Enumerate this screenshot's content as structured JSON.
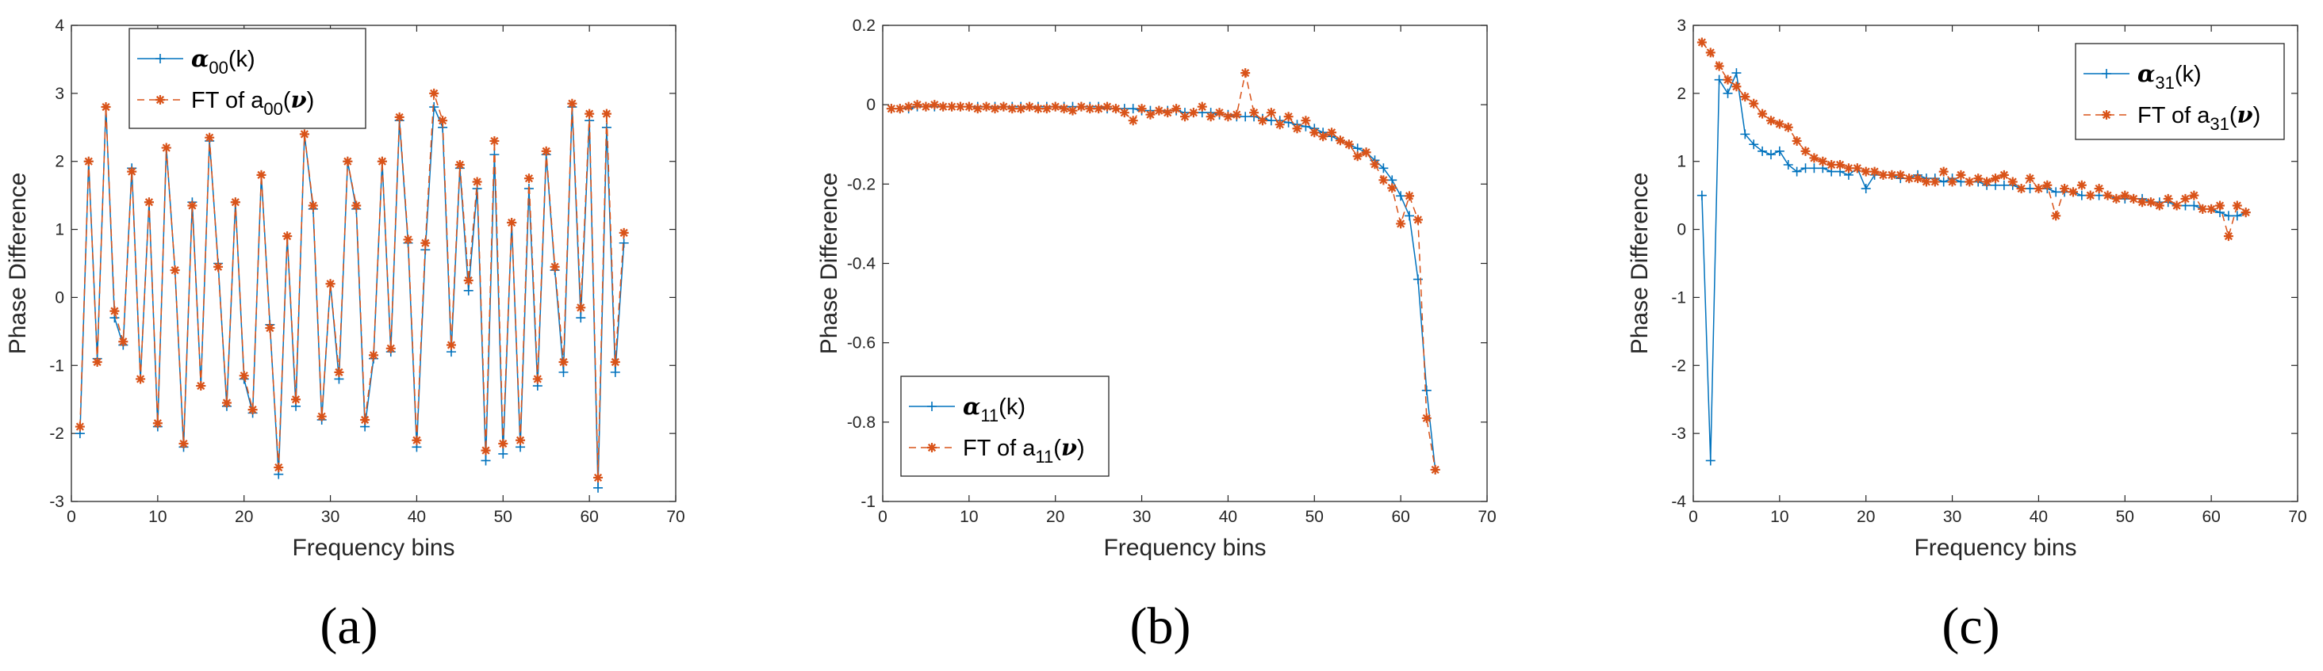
{
  "colors": {
    "series1": "#0072BD",
    "series2": "#D95319",
    "axis": "#262626"
  },
  "chart_data": [
    {
      "type": "line",
      "panel": "(a)",
      "xlabel": "Frequency bins",
      "ylabel": "Phase Difference",
      "xlim": [
        0,
        70
      ],
      "ylim": [
        -3,
        4
      ],
      "xticks": [
        "0",
        "10",
        "20",
        "30",
        "40",
        "50",
        "60",
        "70"
      ],
      "yticks": [
        "-3",
        "-2",
        "-1",
        "0",
        "1",
        "2",
        "3",
        "4"
      ],
      "legend_position": "top-left",
      "legend": [
        {
          "sym": "α",
          "sub": "00",
          "post": "(k)"
        },
        {
          "pre": "FT of a",
          "sub": "00",
          "post": "(ν)"
        }
      ],
      "x": [
        1,
        2,
        3,
        4,
        5,
        6,
        7,
        8,
        9,
        10,
        11,
        12,
        13,
        14,
        15,
        16,
        17,
        18,
        19,
        20,
        21,
        22,
        23,
        24,
        25,
        26,
        27,
        28,
        29,
        30,
        31,
        32,
        33,
        34,
        35,
        36,
        37,
        38,
        39,
        40,
        41,
        42,
        43,
        44,
        45,
        46,
        47,
        48,
        49,
        50,
        51,
        52,
        53,
        54,
        55,
        56,
        57,
        58,
        59,
        60,
        61,
        62,
        63,
        64
      ],
      "series": [
        {
          "name": "alpha_00(k)",
          "marker": "+",
          "style": "solid",
          "values": [
            -2.0,
            2.0,
            -0.9,
            2.8,
            -0.3,
            -0.7,
            1.9,
            -1.2,
            1.4,
            -1.9,
            2.2,
            0.4,
            -2.2,
            1.4,
            -1.3,
            2.3,
            0.5,
            -1.6,
            1.4,
            -1.2,
            -1.7,
            1.8,
            -0.4,
            -2.6,
            0.9,
            -1.6,
            2.4,
            1.3,
            -1.8,
            0.2,
            -1.2,
            2.0,
            1.3,
            -1.9,
            -0.9,
            2.0,
            -0.8,
            2.6,
            0.8,
            -2.2,
            0.7,
            2.8,
            2.5,
            -0.8,
            1.9,
            0.1,
            1.6,
            -2.4,
            2.1,
            -2.3,
            1.1,
            -2.2,
            1.6,
            -1.3,
            2.1,
            0.4,
            -1.1,
            2.8,
            -0.3,
            2.6,
            -2.8,
            2.5,
            -1.1,
            0.8
          ]
        },
        {
          "name": "FT of a_00(nu)",
          "marker": "*",
          "style": "dashed",
          "values": [
            -1.9,
            2.0,
            -0.95,
            2.8,
            -0.2,
            -0.65,
            1.85,
            -1.2,
            1.4,
            -1.85,
            2.2,
            0.4,
            -2.15,
            1.35,
            -1.3,
            2.35,
            0.45,
            -1.55,
            1.4,
            -1.15,
            -1.65,
            1.8,
            -0.45,
            -2.5,
            0.9,
            -1.5,
            2.4,
            1.35,
            -1.75,
            0.2,
            -1.1,
            2.0,
            1.35,
            -1.8,
            -0.85,
            2.0,
            -0.75,
            2.65,
            0.85,
            -2.1,
            0.8,
            3.0,
            2.6,
            -0.7,
            1.95,
            0.25,
            1.7,
            -2.25,
            2.3,
            -2.15,
            1.1,
            -2.1,
            1.75,
            -1.2,
            2.15,
            0.45,
            -0.95,
            2.85,
            -0.15,
            2.7,
            -2.65,
            2.7,
            -0.95,
            0.95
          ]
        }
      ]
    },
    {
      "type": "line",
      "panel": "(b)",
      "xlabel": "Frequency bins",
      "ylabel": "Phase Difference",
      "xlim": [
        0,
        70
      ],
      "ylim": [
        -1,
        0.2
      ],
      "xticks": [
        "0",
        "10",
        "20",
        "30",
        "40",
        "50",
        "60",
        "70"
      ],
      "yticks": [
        "-1",
        "-0.8",
        "-0.6",
        "-0.4",
        "-0.2",
        "0",
        "0.2"
      ],
      "legend_position": "bottom-left",
      "legend": [
        {
          "sym": "α",
          "sub": "11",
          "post": "(k)"
        },
        {
          "pre": "FT of a",
          "sub": "11",
          "post": "(ν)"
        }
      ],
      "x": [
        1,
        2,
        3,
        4,
        5,
        6,
        7,
        8,
        9,
        10,
        11,
        12,
        13,
        14,
        15,
        16,
        17,
        18,
        19,
        20,
        21,
        22,
        23,
        24,
        25,
        26,
        27,
        28,
        29,
        30,
        31,
        32,
        33,
        34,
        35,
        36,
        37,
        38,
        39,
        40,
        41,
        42,
        43,
        44,
        45,
        46,
        47,
        48,
        49,
        50,
        51,
        52,
        53,
        54,
        55,
        56,
        57,
        58,
        59,
        60,
        61,
        62,
        63,
        64
      ],
      "series": [
        {
          "name": "alpha_11(k)",
          "marker": "+",
          "style": "solid",
          "values": [
            -0.01,
            -0.01,
            -0.01,
            -0.005,
            -0.005,
            -0.005,
            -0.005,
            -0.005,
            -0.005,
            -0.005,
            -0.005,
            -0.005,
            -0.005,
            -0.005,
            -0.005,
            -0.005,
            -0.005,
            -0.005,
            -0.005,
            -0.005,
            -0.005,
            -0.005,
            -0.005,
            -0.005,
            -0.005,
            -0.01,
            -0.01,
            -0.01,
            -0.01,
            -0.015,
            -0.015,
            -0.015,
            -0.015,
            -0.015,
            -0.02,
            -0.02,
            -0.02,
            -0.02,
            -0.025,
            -0.025,
            -0.03,
            -0.03,
            -0.03,
            -0.035,
            -0.04,
            -0.04,
            -0.045,
            -0.05,
            -0.055,
            -0.06,
            -0.07,
            -0.08,
            -0.09,
            -0.1,
            -0.11,
            -0.12,
            -0.14,
            -0.16,
            -0.19,
            -0.23,
            -0.28,
            -0.44,
            -0.72,
            -0.92
          ]
        },
        {
          "name": "FT of a_11(nu)",
          "marker": "*",
          "style": "dashed",
          "values": [
            -0.01,
            -0.01,
            -0.005,
            0.0,
            -0.005,
            0.0,
            -0.005,
            -0.005,
            -0.005,
            -0.005,
            -0.01,
            -0.005,
            -0.01,
            -0.005,
            -0.01,
            -0.01,
            -0.005,
            -0.01,
            -0.01,
            -0.005,
            -0.01,
            -0.015,
            -0.005,
            -0.01,
            -0.01,
            -0.005,
            -0.01,
            -0.02,
            -0.04,
            -0.01,
            -0.025,
            -0.015,
            -0.02,
            -0.01,
            -0.03,
            -0.02,
            -0.005,
            -0.03,
            -0.02,
            -0.03,
            -0.025,
            0.08,
            -0.02,
            -0.04,
            -0.02,
            -0.05,
            -0.03,
            -0.06,
            -0.04,
            -0.07,
            -0.08,
            -0.07,
            -0.09,
            -0.1,
            -0.13,
            -0.12,
            -0.15,
            -0.19,
            -0.21,
            -0.3,
            -0.23,
            -0.29,
            -0.79,
            -0.92
          ]
        }
      ]
    },
    {
      "type": "line",
      "panel": "(c)",
      "xlabel": "Frequency bins",
      "ylabel": "Phase Difference",
      "xlim": [
        0,
        70
      ],
      "ylim": [
        -4,
        3
      ],
      "xticks": [
        "0",
        "10",
        "20",
        "30",
        "40",
        "50",
        "60",
        "70"
      ],
      "yticks": [
        "-4",
        "-3",
        "-2",
        "-1",
        "0",
        "1",
        "2",
        "3"
      ],
      "legend_position": "top-right",
      "legend": [
        {
          "sym": "α",
          "sub": "31",
          "post": "(k)"
        },
        {
          "pre": "FT of a",
          "sub": "31",
          "post": "(ν)"
        }
      ],
      "x": [
        1,
        2,
        3,
        4,
        5,
        6,
        7,
        8,
        9,
        10,
        11,
        12,
        13,
        14,
        15,
        16,
        17,
        18,
        19,
        20,
        21,
        22,
        23,
        24,
        25,
        26,
        27,
        28,
        29,
        30,
        31,
        32,
        33,
        34,
        35,
        36,
        37,
        38,
        39,
        40,
        41,
        42,
        43,
        44,
        45,
        46,
        47,
        48,
        49,
        50,
        51,
        52,
        53,
        54,
        55,
        56,
        57,
        58,
        59,
        60,
        61,
        62,
        63,
        64
      ],
      "series": [
        {
          "name": "alpha_31(k)",
          "marker": "+",
          "style": "solid",
          "values": [
            0.5,
            -3.4,
            2.2,
            2.0,
            2.3,
            1.4,
            1.25,
            1.15,
            1.1,
            1.15,
            0.95,
            0.85,
            0.9,
            0.9,
            0.9,
            0.85,
            0.85,
            0.8,
            0.9,
            0.6,
            0.8,
            0.8,
            0.8,
            0.75,
            0.75,
            0.8,
            0.75,
            0.75,
            0.7,
            0.75,
            0.7,
            0.7,
            0.7,
            0.65,
            0.65,
            0.65,
            0.65,
            0.6,
            0.6,
            0.6,
            0.6,
            0.55,
            0.55,
            0.55,
            0.5,
            0.5,
            0.5,
            0.5,
            0.45,
            0.45,
            0.45,
            0.45,
            0.4,
            0.4,
            0.4,
            0.35,
            0.35,
            0.35,
            0.3,
            0.3,
            0.25,
            0.2,
            0.2,
            0.25
          ]
        },
        {
          "name": "FT of a_31(nu)",
          "marker": "*",
          "style": "dashed",
          "values": [
            2.75,
            2.6,
            2.4,
            2.2,
            2.1,
            1.95,
            1.85,
            1.7,
            1.6,
            1.55,
            1.5,
            1.3,
            1.15,
            1.05,
            1.0,
            0.95,
            0.95,
            0.9,
            0.9,
            0.85,
            0.85,
            0.8,
            0.8,
            0.8,
            0.75,
            0.75,
            0.7,
            0.7,
            0.85,
            0.7,
            0.8,
            0.7,
            0.75,
            0.7,
            0.75,
            0.8,
            0.7,
            0.6,
            0.75,
            0.6,
            0.65,
            0.2,
            0.6,
            0.55,
            0.65,
            0.5,
            0.6,
            0.5,
            0.45,
            0.5,
            0.45,
            0.4,
            0.4,
            0.35,
            0.45,
            0.35,
            0.45,
            0.5,
            0.3,
            0.3,
            0.35,
            -0.1,
            0.35,
            0.25
          ]
        }
      ]
    }
  ]
}
